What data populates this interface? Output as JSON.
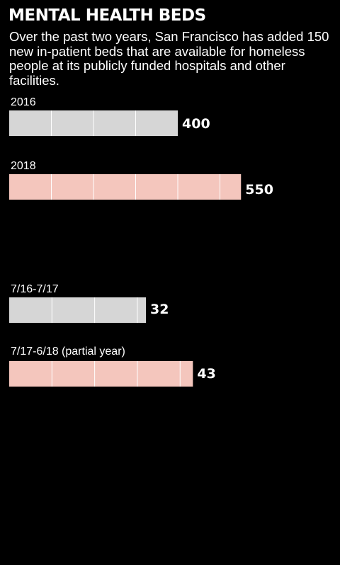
{
  "title": "MENTAL HEALTH BEDS",
  "subtitle": "Over the past two years, San Francisco has added 150 new in-patient beds that are available for homeless people at its publicly funded hospitals and other facilities.",
  "colors": {
    "background": "#000000",
    "bar_grey": "#d6d6d6",
    "bar_pink": "#f4c6bd",
    "divider": "#ffffff",
    "text": "#ffffff"
  },
  "chart_data": [
    {
      "type": "bar",
      "orientation": "horizontal",
      "categories": [
        "2016",
        "2018"
      ],
      "values": [
        400,
        550
      ],
      "value_labels": [
        "400",
        "550"
      ],
      "bar_colors": [
        "#d6d6d6",
        "#f4c6bd"
      ],
      "unit_step": 100,
      "title": "",
      "xlabel": "",
      "ylabel": ""
    },
    {
      "type": "bar",
      "orientation": "horizontal",
      "categories": [
        "7/16-7/17",
        "7/17-6/18 (partial year)"
      ],
      "values": [
        32,
        43
      ],
      "value_labels": [
        "32",
        "43"
      ],
      "bar_colors": [
        "#d6d6d6",
        "#f4c6bd"
      ],
      "unit_step": 10,
      "title": "",
      "xlabel": "",
      "ylabel": ""
    }
  ]
}
